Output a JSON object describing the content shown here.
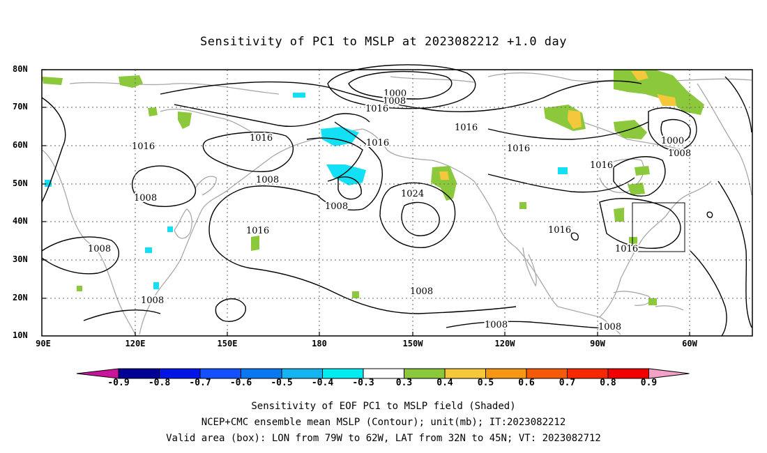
{
  "title": "Sensitivity of PC1 to MSLP at 2023082212 +1.0 day",
  "lat_labels": [
    "80N",
    "70N",
    "60N",
    "50N",
    "40N",
    "30N",
    "20N",
    "10N"
  ],
  "lon_labels": [
    "90E",
    "120E",
    "150E",
    "180",
    "150W",
    "120W",
    "90W",
    "60W"
  ],
  "contour_labels": [
    "1000",
    "1008",
    "1016",
    "1016",
    "1016",
    "1016",
    "1016",
    "1008",
    "1008",
    "1008",
    "1016",
    "1024",
    "1016",
    "1016",
    "1016",
    "1008",
    "1008",
    "1008",
    "1008",
    "1008",
    "1000",
    "1008"
  ],
  "colorbar": {
    "labels": [
      "-0.9",
      "-0.8",
      "-0.7",
      "-0.6",
      "-0.5",
      "-0.4",
      "-0.3",
      "0.3",
      "0.4",
      "0.5",
      "0.6",
      "0.7",
      "0.8",
      "0.9"
    ],
    "colors": [
      "#000096",
      "#0014e6",
      "#1450ff",
      "#0a78f0",
      "#14b4f0",
      "#00ebf0",
      "#ffffff",
      "#8cc83c",
      "#f5c83c",
      "#f59614",
      "#f55a0a",
      "#f52800",
      "#f00000"
    ],
    "low_extend_color": "#c8149a",
    "high_extend_color": "#f5a0c8"
  },
  "captions": {
    "line1": "Sensitivity of EOF PC1 to MSLP field (Shaded)",
    "line2": "NCEP+CMC ensemble mean MSLP (Contour); unit(mb); IT:2023082212",
    "line3": "Valid area (box): LON from 79W to 62W, LAT from 32N to 45N; VT: 2023082712"
  }
}
